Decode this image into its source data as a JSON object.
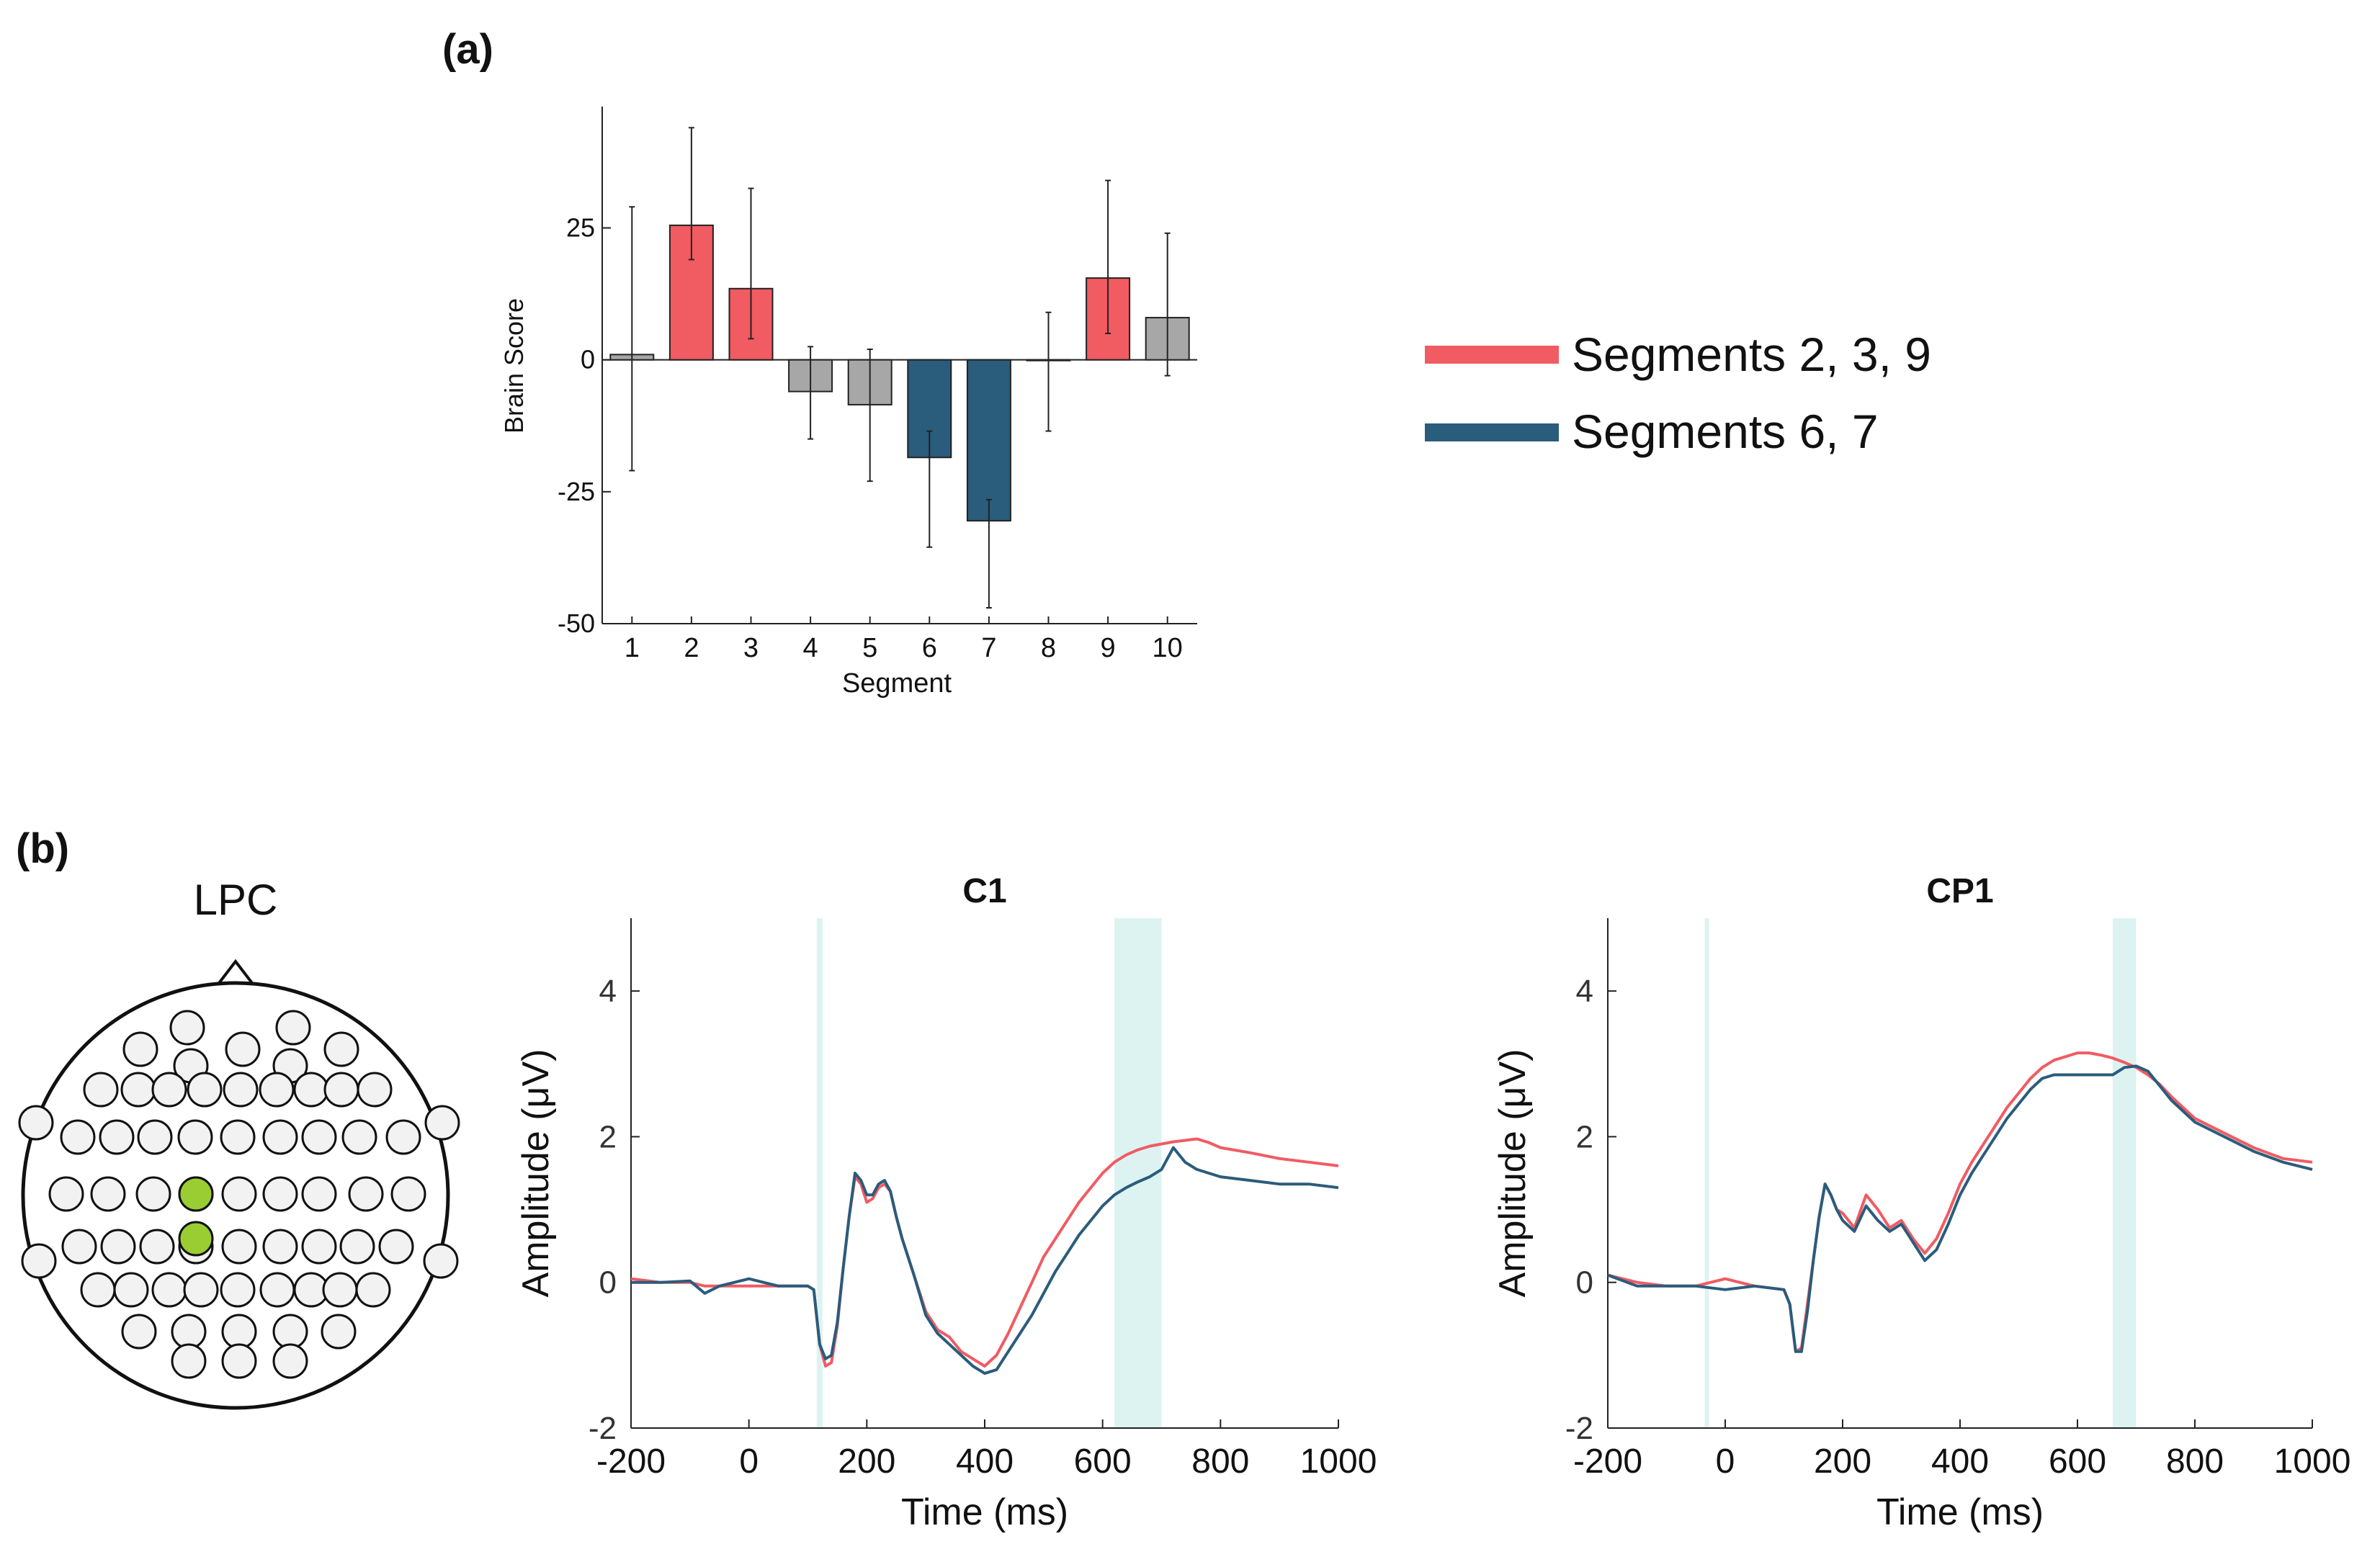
{
  "panel_labels": {
    "a": "(a)",
    "b": "(b)"
  },
  "colors": {
    "pos": "#F15B62",
    "neg": "#2A5C7C",
    "neutral": "#A7A7A7",
    "highlight": "#DDF3F1",
    "electrode": "#F2F2F2",
    "electrode_active": "#9ACD32"
  },
  "legend": [
    {
      "label": "Segments 2, 3, 9",
      "color": "#F15B62"
    },
    {
      "label": "Segments 6, 7",
      "color": "#2A5C7C"
    }
  ],
  "topomap": {
    "title": "LPC"
  },
  "chart_data": [
    {
      "id": "bar",
      "type": "bar",
      "xlabel": "Segment",
      "ylabel": "Brain Score",
      "ylim": [
        -50,
        48
      ],
      "yticks": [
        25,
        0,
        -25,
        -50
      ],
      "categories": [
        "1",
        "2",
        "3",
        "4",
        "5",
        "6",
        "7",
        "8",
        "9",
        "10"
      ],
      "values": [
        1,
        25.5,
        13.5,
        -6,
        -8.5,
        -18.5,
        -30.5,
        0,
        15.5,
        8
      ],
      "err_low": [
        -21,
        19,
        4,
        -15,
        -23,
        -35.5,
        -47,
        -13.5,
        5,
        -3
      ],
      "err_high": [
        29,
        44,
        32.5,
        2.5,
        2,
        -13.5,
        -26.5,
        9,
        34,
        24
      ],
      "groups": [
        "neutral",
        "pos",
        "pos",
        "neutral",
        "neutral",
        "neg",
        "neg",
        "neutral",
        "pos",
        "neutral"
      ]
    },
    {
      "id": "c1",
      "type": "line",
      "title": "C1",
      "xlabel": "Time (ms)",
      "ylabel": "Amplitude (μV)",
      "xlim": [
        -200,
        1000
      ],
      "ylim": [
        -2,
        5
      ],
      "xticks": [
        "-200",
        "0",
        "200",
        "400",
        "600",
        "800",
        "1000"
      ],
      "yticks": [
        "-2",
        "0",
        "2",
        "4"
      ],
      "highlight_ranges": [
        [
          115,
          125
        ],
        [
          620,
          700
        ]
      ],
      "series": [
        {
          "name": "Segments 2, 3, 9",
          "color": "#F15B62",
          "x": [
            -200,
            -150,
            -100,
            -75,
            -50,
            0,
            50,
            100,
            110,
            120,
            130,
            140,
            150,
            160,
            170,
            180,
            190,
            200,
            210,
            220,
            230,
            240,
            250,
            260,
            280,
            300,
            320,
            340,
            360,
            380,
            400,
            420,
            440,
            460,
            480,
            500,
            520,
            540,
            560,
            580,
            600,
            620,
            640,
            660,
            680,
            700,
            720,
            740,
            760,
            780,
            800,
            850,
            900,
            950,
            1000
          ],
          "y": [
            0.05,
            0.0,
            0.0,
            -0.05,
            -0.05,
            -0.05,
            -0.05,
            -0.05,
            -0.1,
            -0.85,
            -1.15,
            -1.1,
            -0.6,
            0.2,
            0.9,
            1.45,
            1.35,
            1.1,
            1.15,
            1.3,
            1.35,
            1.25,
            0.9,
            0.6,
            0.1,
            -0.4,
            -0.65,
            -0.75,
            -0.95,
            -1.05,
            -1.15,
            -1.0,
            -0.7,
            -0.35,
            0.0,
            0.35,
            0.6,
            0.85,
            1.1,
            1.3,
            1.5,
            1.65,
            1.75,
            1.82,
            1.87,
            1.9,
            1.93,
            1.95,
            1.97,
            1.92,
            1.85,
            1.78,
            1.7,
            1.65,
            1.6
          ]
        },
        {
          "name": "Segments 6, 7",
          "color": "#2A5C7C",
          "x": [
            -200,
            -150,
            -100,
            -75,
            -50,
            0,
            50,
            100,
            110,
            120,
            130,
            140,
            150,
            160,
            170,
            180,
            190,
            200,
            210,
            220,
            230,
            240,
            250,
            260,
            280,
            300,
            320,
            340,
            360,
            380,
            400,
            420,
            440,
            460,
            480,
            500,
            520,
            540,
            560,
            580,
            600,
            620,
            640,
            660,
            680,
            700,
            720,
            740,
            760,
            780,
            800,
            850,
            900,
            950,
            1000
          ],
          "y": [
            0.0,
            0.0,
            0.02,
            -0.15,
            -0.05,
            0.05,
            -0.05,
            -0.05,
            -0.1,
            -0.85,
            -1.05,
            -1.0,
            -0.55,
            0.2,
            0.9,
            1.5,
            1.4,
            1.2,
            1.2,
            1.35,
            1.4,
            1.25,
            0.9,
            0.6,
            0.1,
            -0.45,
            -0.7,
            -0.85,
            -1.0,
            -1.15,
            -1.25,
            -1.2,
            -0.95,
            -0.7,
            -0.45,
            -0.15,
            0.15,
            0.4,
            0.65,
            0.85,
            1.05,
            1.2,
            1.3,
            1.38,
            1.45,
            1.55,
            1.85,
            1.65,
            1.55,
            1.5,
            1.45,
            1.4,
            1.35,
            1.35,
            1.3
          ]
        }
      ]
    },
    {
      "id": "cp1",
      "type": "line",
      "title": "CP1",
      "xlabel": "Time (ms)",
      "ylabel": "Amplitude (μV)",
      "xlim": [
        -200,
        1000
      ],
      "ylim": [
        -2,
        5
      ],
      "xticks": [
        "-200",
        "0",
        "200",
        "400",
        "600",
        "800",
        "1000"
      ],
      "yticks": [
        "-2",
        "0",
        "2",
        "4"
      ],
      "highlight_ranges": [
        [
          -35,
          -30
        ],
        [
          660,
          700
        ]
      ],
      "series": [
        {
          "name": "Segments 2, 3, 9",
          "color": "#F15B62",
          "x": [
            -200,
            -150,
            -100,
            -50,
            0,
            50,
            100,
            110,
            120,
            130,
            140,
            150,
            160,
            170,
            180,
            190,
            200,
            220,
            240,
            260,
            280,
            300,
            320,
            340,
            360,
            380,
            400,
            420,
            440,
            460,
            480,
            500,
            520,
            540,
            560,
            580,
            600,
            620,
            640,
            660,
            680,
            700,
            720,
            740,
            760,
            780,
            800,
            850,
            900,
            950,
            1000
          ],
          "y": [
            0.1,
            0.0,
            -0.05,
            -0.05,
            0.05,
            -0.05,
            -0.1,
            -0.3,
            -0.95,
            -0.9,
            -0.3,
            0.3,
            0.9,
            1.35,
            1.2,
            1.0,
            0.95,
            0.75,
            1.2,
            1.0,
            0.75,
            0.85,
            0.6,
            0.4,
            0.6,
            0.95,
            1.35,
            1.65,
            1.9,
            2.15,
            2.4,
            2.6,
            2.8,
            2.95,
            3.05,
            3.1,
            3.15,
            3.15,
            3.12,
            3.08,
            3.02,
            2.95,
            2.85,
            2.72,
            2.55,
            2.4,
            2.25,
            2.05,
            1.85,
            1.7,
            1.65
          ]
        },
        {
          "name": "Segments 6, 7",
          "color": "#2A5C7C",
          "x": [
            -200,
            -150,
            -100,
            -50,
            0,
            50,
            100,
            110,
            120,
            130,
            140,
            150,
            160,
            170,
            180,
            190,
            200,
            220,
            240,
            260,
            280,
            300,
            320,
            340,
            360,
            380,
            400,
            420,
            440,
            460,
            480,
            500,
            520,
            540,
            560,
            580,
            600,
            620,
            640,
            660,
            680,
            700,
            720,
            740,
            760,
            780,
            800,
            850,
            900,
            950,
            1000
          ],
          "y": [
            0.1,
            -0.05,
            -0.05,
            -0.05,
            -0.1,
            -0.05,
            -0.1,
            -0.3,
            -0.95,
            -0.95,
            -0.4,
            0.3,
            0.9,
            1.35,
            1.2,
            1.0,
            0.85,
            0.7,
            1.05,
            0.85,
            0.7,
            0.8,
            0.55,
            0.3,
            0.45,
            0.8,
            1.2,
            1.5,
            1.75,
            2.0,
            2.25,
            2.45,
            2.65,
            2.8,
            2.85,
            2.85,
            2.85,
            2.85,
            2.85,
            2.85,
            2.95,
            2.97,
            2.9,
            2.7,
            2.5,
            2.35,
            2.2,
            2.0,
            1.8,
            1.65,
            1.55
          ]
        }
      ]
    }
  ]
}
